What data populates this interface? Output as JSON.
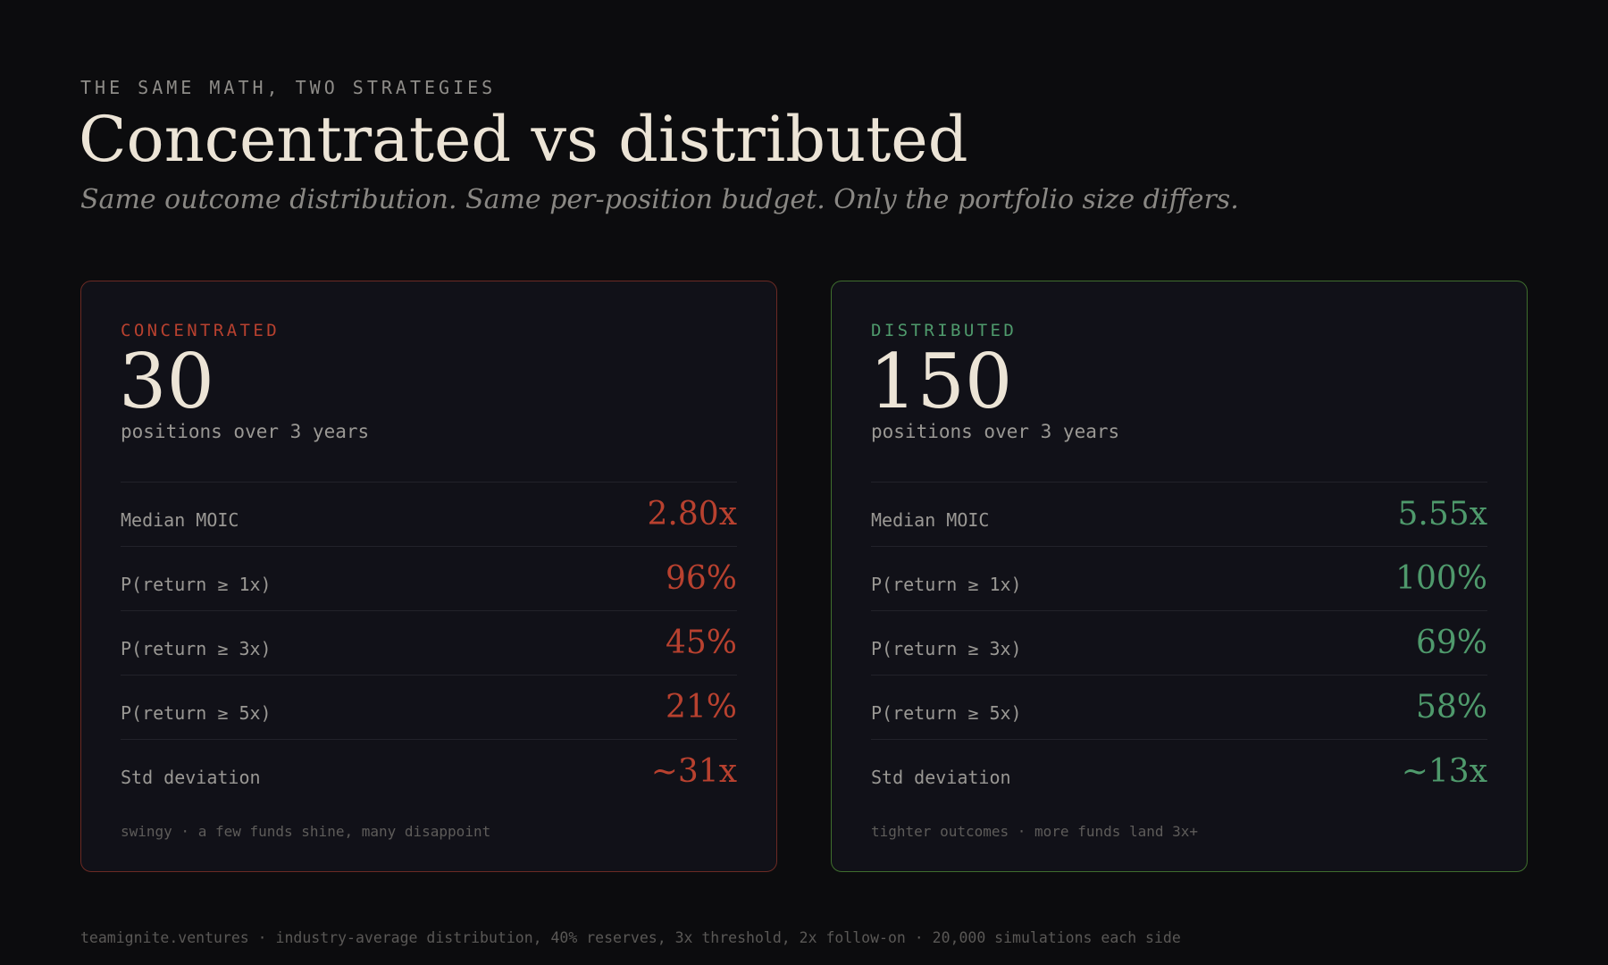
{
  "header": {
    "eyebrow": "THE SAME MATH, TWO STRATEGIES",
    "title": "Concentrated vs distributed",
    "subtitle": "Same outcome distribution. Same per-position budget. Only the portfolio size differs."
  },
  "colors": {
    "background": "#0c0c0e",
    "card_background": "#111118",
    "concentrated_accent": "#b8412f",
    "concentrated_border": "#6b2a24",
    "distributed_accent": "#4f9a6c",
    "distributed_border": "#3f6e2e",
    "headline_text": "#ece4d6"
  },
  "strategies": [
    {
      "label": "CONCENTRATED",
      "count": "30",
      "caption": "positions over 3 years",
      "metrics": [
        {
          "label": "Median MOIC",
          "value": "2.80x"
        },
        {
          "label": "P(return ≥ 1x)",
          "value": "96%"
        },
        {
          "label": "P(return ≥ 3x)",
          "value": "45%"
        },
        {
          "label": "P(return ≥ 5x)",
          "value": "21%"
        },
        {
          "label": "Std deviation",
          "value": "~31x"
        }
      ],
      "note": "swingy · a few funds shine, many disappoint"
    },
    {
      "label": "DISTRIBUTED",
      "count": "150",
      "caption": "positions over 3 years",
      "metrics": [
        {
          "label": "Median MOIC",
          "value": "5.55x"
        },
        {
          "label": "P(return ≥ 1x)",
          "value": "100%"
        },
        {
          "label": "P(return ≥ 3x)",
          "value": "69%"
        },
        {
          "label": "P(return ≥ 5x)",
          "value": "58%"
        },
        {
          "label": "Std deviation",
          "value": "~13x"
        }
      ],
      "note": "tighter outcomes · more funds land 3x+"
    }
  ],
  "footer": "teamignite.ventures · industry-average distribution, 40% reserves, 3x threshold, 2x follow-on · 20,000 simulations each side"
}
